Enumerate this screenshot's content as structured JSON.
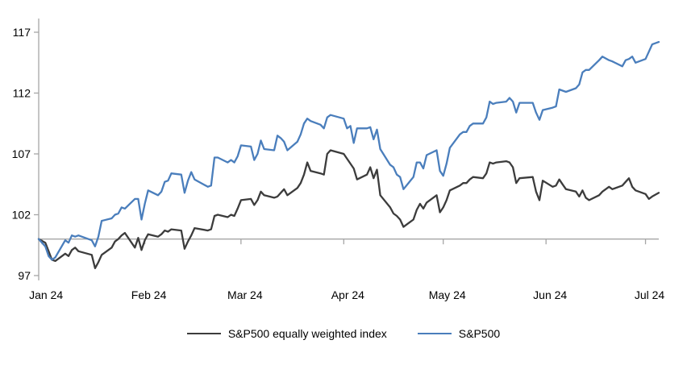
{
  "chart_data": {
    "type": "line",
    "title": "",
    "xlabel": "",
    "ylabel": "",
    "ylim": [
      97,
      117
    ],
    "yticks": [
      97,
      102,
      107,
      112,
      117
    ],
    "xtick_labels": [
      "Jan 24",
      "Feb 24",
      "Mar 24",
      "Apr 24",
      "May 24",
      "Jun 24",
      "Jul 24"
    ],
    "baseline_value": 100,
    "grid": false,
    "legend_position": "bottom",
    "axis_color": "#a6a6a6",
    "label_color": "#000000",
    "x_dates": [
      "12-29",
      "01-02",
      "01-03",
      "01-04",
      "01-05",
      "01-08",
      "01-09",
      "01-10",
      "01-11",
      "01-12",
      "01-16",
      "01-17",
      "01-18",
      "01-19",
      "01-22",
      "01-23",
      "01-24",
      "01-25",
      "01-26",
      "01-29",
      "01-30",
      "01-31",
      "02-01",
      "02-02",
      "02-05",
      "02-06",
      "02-07",
      "02-08",
      "02-09",
      "02-12",
      "02-13",
      "02-14",
      "02-15",
      "02-16",
      "02-20",
      "02-21",
      "02-22",
      "02-23",
      "02-26",
      "02-27",
      "02-28",
      "02-29",
      "03-01",
      "03-04",
      "03-05",
      "03-06",
      "03-07",
      "03-08",
      "03-11",
      "03-12",
      "03-13",
      "03-14",
      "03-15",
      "03-18",
      "03-19",
      "03-20",
      "03-21",
      "03-22",
      "03-25",
      "03-26",
      "03-27",
      "03-28",
      "04-01",
      "04-02",
      "04-03",
      "04-04",
      "04-05",
      "04-08",
      "04-09",
      "04-10",
      "04-11",
      "04-12",
      "04-15",
      "04-16",
      "04-17",
      "04-18",
      "04-19",
      "04-22",
      "04-23",
      "04-24",
      "04-25",
      "04-26",
      "04-29",
      "04-30",
      "05-01",
      "05-02",
      "05-03",
      "05-06",
      "05-07",
      "05-08",
      "05-09",
      "05-10",
      "05-13",
      "05-14",
      "05-15",
      "05-16",
      "05-17",
      "05-20",
      "05-21",
      "05-22",
      "05-23",
      "05-24",
      "05-28",
      "05-29",
      "05-30",
      "05-31",
      "06-03",
      "06-04",
      "06-05",
      "06-06",
      "06-07",
      "06-10",
      "06-11",
      "06-12",
      "06-13",
      "06-14",
      "06-17",
      "06-18",
      "06-20",
      "06-21",
      "06-24",
      "06-25",
      "06-26",
      "06-27",
      "06-28",
      "07-01",
      "07-02",
      "07-03",
      "07-05"
    ],
    "series": [
      {
        "name": "S&P500 equally weighted index",
        "color": "#3c3c3c",
        "values": [
          100.0,
          99.7,
          99.0,
          98.3,
          98.2,
          98.8,
          98.6,
          99.1,
          99.3,
          99.0,
          98.7,
          97.6,
          98.1,
          98.7,
          99.3,
          99.8,
          100.0,
          100.3,
          100.5,
          99.3,
          100.1,
          99.1,
          99.9,
          100.4,
          100.2,
          100.4,
          100.7,
          100.6,
          100.8,
          100.7,
          99.2,
          99.8,
          100.3,
          100.9,
          100.7,
          100.8,
          101.9,
          102.0,
          101.8,
          102.0,
          101.9,
          102.5,
          103.2,
          103.3,
          102.8,
          103.2,
          103.9,
          103.6,
          103.4,
          103.5,
          103.8,
          104.1,
          103.6,
          104.2,
          104.6,
          105.3,
          106.3,
          105.6,
          105.4,
          105.3,
          107.0,
          107.3,
          107.0,
          106.6,
          106.2,
          105.8,
          104.9,
          105.3,
          105.9,
          105.0,
          105.7,
          103.6,
          102.6,
          102.1,
          101.9,
          101.6,
          101.0,
          101.6,
          102.4,
          102.9,
          102.5,
          103.0,
          103.6,
          102.2,
          102.6,
          103.2,
          104.0,
          104.4,
          104.6,
          104.6,
          104.9,
          105.1,
          105.0,
          105.4,
          106.3,
          106.2,
          106.3,
          106.4,
          106.3,
          105.9,
          104.6,
          105.0,
          105.1,
          103.9,
          103.2,
          104.8,
          104.3,
          104.4,
          104.9,
          104.5,
          104.1,
          103.9,
          103.5,
          104.0,
          103.4,
          103.2,
          103.6,
          103.9,
          104.3,
          104.1,
          104.4,
          104.7,
          105.0,
          104.3,
          104.0,
          103.7,
          103.3,
          103.5,
          103.8
        ]
      },
      {
        "name": "S&P500",
        "color": "#4a7ebc",
        "values": [
          100.0,
          99.4,
          98.6,
          98.3,
          98.5,
          99.9,
          99.7,
          100.3,
          100.2,
          100.3,
          99.9,
          99.4,
          100.2,
          101.5,
          101.7,
          102.0,
          102.1,
          102.6,
          102.5,
          103.3,
          103.3,
          101.6,
          102.9,
          104.0,
          103.6,
          103.9,
          104.7,
          104.8,
          105.4,
          105.3,
          103.8,
          104.8,
          105.5,
          104.9,
          104.3,
          104.4,
          106.7,
          106.7,
          106.3,
          106.5,
          106.3,
          106.8,
          107.7,
          107.6,
          106.5,
          107.0,
          108.1,
          107.4,
          107.3,
          108.5,
          108.3,
          108.0,
          107.3,
          108.0,
          108.6,
          109.5,
          109.9,
          109.7,
          109.4,
          109.1,
          110.0,
          110.2,
          109.9,
          109.1,
          109.3,
          107.9,
          109.1,
          109.1,
          109.2,
          108.2,
          109.0,
          107.4,
          106.1,
          105.9,
          105.3,
          105.1,
          104.1,
          105.1,
          106.3,
          106.3,
          105.8,
          106.9,
          107.3,
          105.6,
          105.2,
          106.2,
          107.5,
          108.6,
          108.8,
          108.8,
          109.3,
          109.5,
          109.5,
          110.0,
          111.3,
          111.1,
          111.2,
          111.3,
          111.6,
          111.3,
          110.4,
          111.2,
          111.2,
          110.4,
          109.8,
          110.6,
          110.8,
          110.9,
          112.3,
          112.2,
          112.1,
          112.4,
          112.7,
          113.7,
          113.9,
          113.9,
          114.7,
          115.0,
          114.7,
          114.6,
          114.2,
          114.7,
          114.8,
          115.0,
          114.5,
          114.8,
          115.4,
          116.0,
          116.2
        ]
      }
    ]
  }
}
